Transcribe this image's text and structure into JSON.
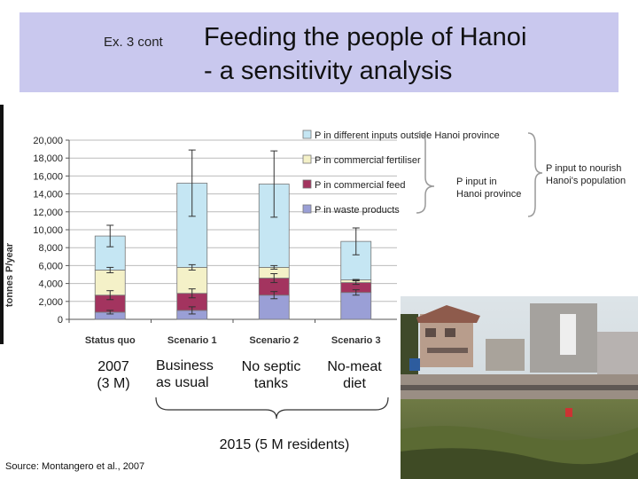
{
  "slide": {
    "ex_label": "Ex. 3 cont",
    "title_line1": "Feeding the people of Hanoi",
    "title_line2": "- a sensitivity analysis",
    "source": "Source:  Montangero et al.,  2007"
  },
  "scenario_labels": [
    {
      "line1": "2007",
      "line2": "(3 M)"
    },
    {
      "line1": "Business",
      "line2": "as usual"
    },
    {
      "line1": "No septic",
      "line2": "tanks"
    },
    {
      "line1": "No-meat",
      "line2": "diet"
    }
  ],
  "bottom_label": "2015   (5 M residents)",
  "bracket_labels": {
    "p_input_hanoi": [
      "P input in",
      "Hanoi province"
    ],
    "p_input_population": [
      "P input to nourish",
      "Hanoi's population"
    ]
  },
  "photo": {
    "description_icon": "photo-hanoi-village-gardens"
  },
  "chart_data": {
    "type": "bar",
    "stacked": true,
    "ylabel": "tonnes P/year",
    "ylim": [
      0,
      20000
    ],
    "yticks": [
      "0",
      "2,000",
      "4,000",
      "6,000",
      "8,000",
      "10,000",
      "12,000",
      "14,000",
      "16,000",
      "18,000",
      "20,000"
    ],
    "categories": [
      "Status quo",
      "Scenario 1",
      "Scenario 2",
      "Scenario 3"
    ],
    "grid": true,
    "legend_position": "top-right",
    "series": [
      {
        "name": "P in waste products",
        "color": "#9a9fd6",
        "values": [
          800,
          1000,
          2700,
          3000
        ],
        "errors": [
          200,
          400,
          400,
          300
        ]
      },
      {
        "name": "P in commercial feed",
        "color": "#a3345f",
        "values": [
          1900,
          1900,
          1900,
          1100
        ],
        "errors": [
          500,
          500,
          500,
          200
        ]
      },
      {
        "name": "P in commercial fertiliser",
        "color": "#f4f1c8",
        "values": [
          2800,
          2900,
          1200,
          300
        ],
        "errors": [
          300,
          300,
          200,
          0
        ]
      },
      {
        "name": "P in different inputs outside Hanoi province",
        "color": "#c5e6f3",
        "values": [
          3800,
          9400,
          9300,
          4300
        ],
        "errors": [
          1200,
          3700,
          3700,
          1500
        ]
      }
    ]
  }
}
